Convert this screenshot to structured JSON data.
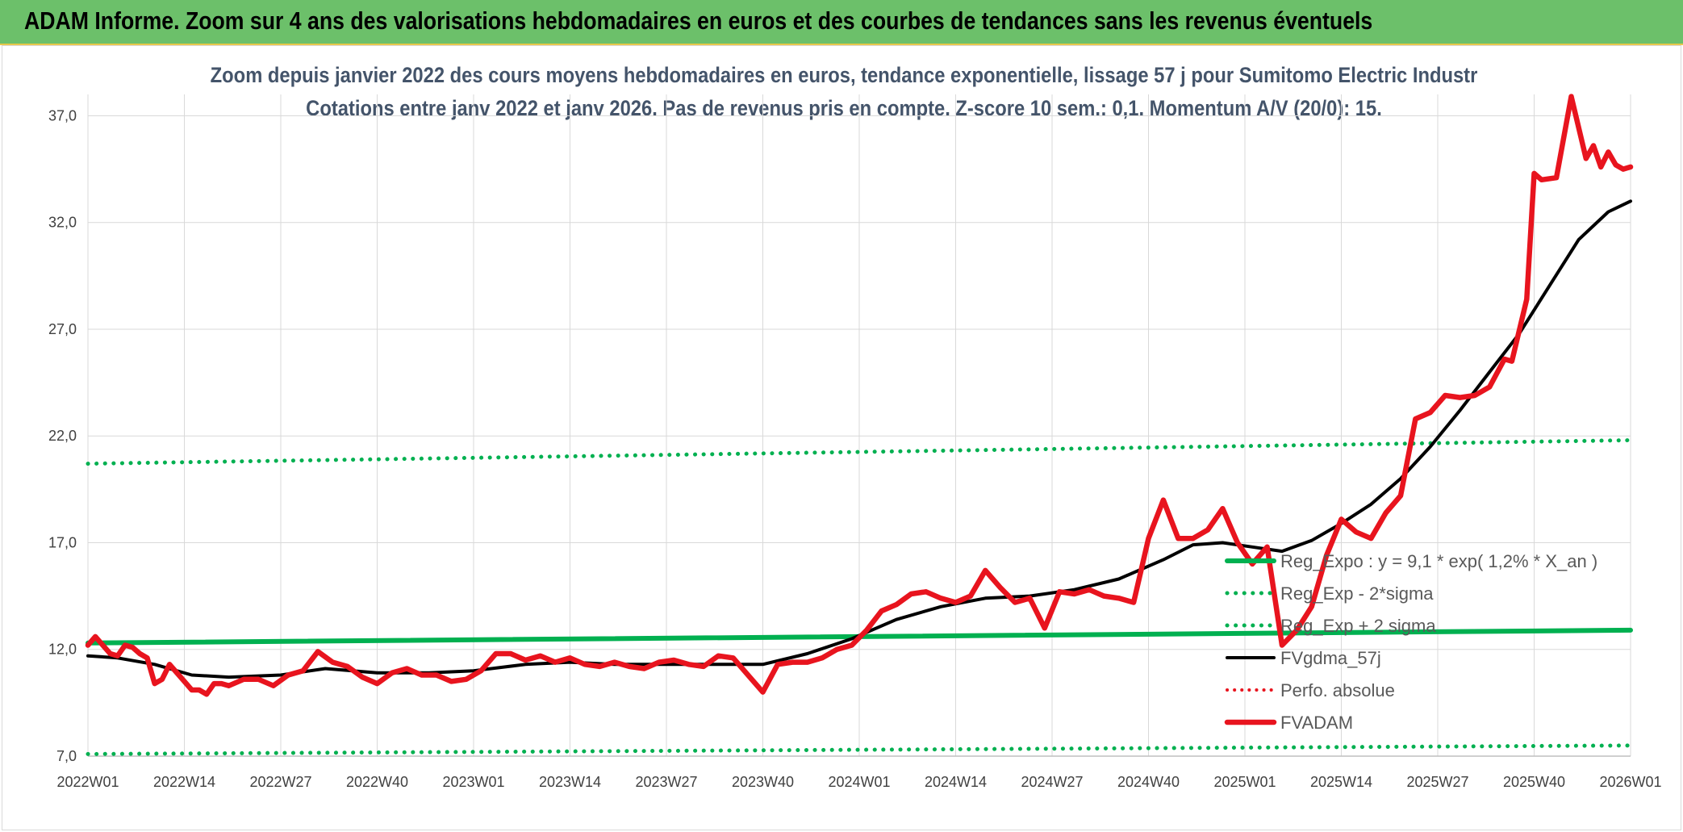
{
  "banner": {
    "title": "ADAM Informe. Zoom sur 4 ans des valorisations hebdomadaires en euros et des courbes de tendances sans les revenus éventuels"
  },
  "colors": {
    "banner_bg": "#6cc06a",
    "price": "#e8141e",
    "smooth": "#000000",
    "regression": "#00b050",
    "perfo": "#e8141e",
    "grid": "#d9d9d9"
  },
  "chart_data": {
    "type": "line",
    "title": "Zoom depuis janvier 2022 des cours moyens hebdomadaires en euros, tendance exponentielle, lissage 57 j pour Sumitomo Electric Industr",
    "subtitle": "Cotations entre janv 2022 et janv 2026. Pas de revenus pris en compte. Z-score 10 sem.: 0,1. Momentum A/V (20/0): 15.",
    "xlabel": "",
    "ylabel": "",
    "ylim": [
      7,
      38
    ],
    "yticks": [
      7,
      12,
      17,
      22,
      27,
      32,
      37
    ],
    "ytick_labels": [
      "7,0",
      "12,0",
      "17,0",
      "22,0",
      "27,0",
      "32,0",
      "37,0"
    ],
    "xrange": [
      1,
      209
    ],
    "xticks": [
      1,
      14,
      27,
      40,
      53,
      66,
      79,
      92,
      105,
      118,
      131,
      144,
      157,
      170,
      183,
      196,
      209
    ],
    "xtick_labels": [
      "2022W01",
      "2022W14",
      "2022W27",
      "2022W40",
      "2023W01",
      "2023W14",
      "2023W27",
      "2023W40",
      "2024W01",
      "2024W14",
      "2024W27",
      "2024W40",
      "2025W01",
      "2025W14",
      "2025W27",
      "2025W40",
      "2026W01"
    ],
    "grid": true,
    "legend_position": "center-right",
    "series": [
      {
        "name": "Reg_Expo : y = 9,1 * exp( 1,2% *  X_an )",
        "style": "solid-green",
        "x": [
          1,
          209
        ],
        "values": [
          12.3,
          12.9
        ]
      },
      {
        "name": "Reg_Exp - 2*sigma",
        "style": "dotted-green",
        "x": [
          1,
          209
        ],
        "values": [
          7.1,
          7.5
        ]
      },
      {
        "name": "Reg_Exp + 2 sigma",
        "style": "dotted-green",
        "x": [
          1,
          209
        ],
        "values": [
          20.7,
          21.8
        ]
      },
      {
        "name": "FVgdma_57j",
        "style": "solid-black",
        "x": [
          1,
          5,
          10,
          15,
          20,
          27,
          33,
          40,
          47,
          53,
          60,
          66,
          72,
          79,
          85,
          92,
          98,
          104,
          110,
          116,
          122,
          128,
          134,
          140,
          146,
          150,
          154,
          158,
          162,
          166,
          170,
          174,
          178,
          182,
          186,
          190,
          194,
          198,
          202,
          206,
          209
        ],
        "values": [
          11.7,
          11.6,
          11.3,
          10.8,
          10.7,
          10.8,
          11.1,
          10.9,
          10.9,
          11.0,
          11.3,
          11.4,
          11.3,
          11.3,
          11.3,
          11.3,
          11.8,
          12.5,
          13.4,
          14.0,
          14.4,
          14.5,
          14.8,
          15.3,
          16.2,
          16.9,
          17.0,
          16.8,
          16.6,
          17.1,
          17.9,
          18.8,
          20.0,
          21.5,
          23.2,
          25.0,
          26.8,
          29.0,
          31.2,
          32.5,
          33.0
        ]
      },
      {
        "name": "Perfo. absolue",
        "style": "dotted-red",
        "x": [],
        "values": []
      },
      {
        "name": "FVADAM",
        "style": "solid-red",
        "x": [
          1,
          2,
          3,
          4,
          5,
          6,
          7,
          8,
          9,
          10,
          11,
          12,
          13,
          14,
          15,
          16,
          17,
          18,
          19,
          20,
          22,
          24,
          26,
          28,
          30,
          32,
          34,
          36,
          38,
          40,
          42,
          44,
          46,
          48,
          50,
          52,
          54,
          56,
          58,
          60,
          62,
          64,
          66,
          68,
          70,
          72,
          74,
          76,
          78,
          80,
          82,
          84,
          86,
          88,
          90,
          92,
          94,
          96,
          98,
          100,
          102,
          104,
          106,
          108,
          110,
          112,
          114,
          116,
          118,
          120,
          122,
          124,
          126,
          128,
          130,
          132,
          134,
          136,
          138,
          140,
          142,
          144,
          146,
          148,
          150,
          152,
          154,
          156,
          158,
          160,
          162,
          164,
          166,
          168,
          170,
          172,
          174,
          176,
          178,
          180,
          182,
          184,
          186,
          188,
          190,
          192,
          193,
          195,
          196,
          197,
          199,
          201,
          203,
          204,
          205,
          206,
          207,
          208,
          209
        ],
        "values": [
          12.2,
          12.6,
          12.2,
          11.8,
          11.7,
          12.2,
          12.1,
          11.8,
          11.6,
          10.4,
          10.6,
          11.3,
          10.9,
          10.5,
          10.1,
          10.1,
          9.9,
          10.4,
          10.4,
          10.3,
          10.6,
          10.6,
          10.3,
          10.8,
          11.0,
          11.9,
          11.4,
          11.2,
          10.7,
          10.4,
          10.9,
          11.1,
          10.8,
          10.8,
          10.5,
          10.6,
          11.0,
          11.8,
          11.8,
          11.5,
          11.7,
          11.4,
          11.6,
          11.3,
          11.2,
          11.4,
          11.2,
          11.1,
          11.4,
          11.5,
          11.3,
          11.2,
          11.7,
          11.6,
          10.8,
          10.0,
          11.3,
          11.4,
          11.4,
          11.6,
          12.0,
          12.2,
          12.9,
          13.8,
          14.1,
          14.6,
          14.7,
          14.4,
          14.2,
          14.5,
          15.7,
          14.9,
          14.2,
          14.4,
          13.0,
          14.7,
          14.6,
          14.8,
          14.5,
          14.4,
          14.2,
          17.2,
          19.0,
          17.2,
          17.2,
          17.6,
          18.6,
          17.0,
          16.0,
          16.8,
          12.2,
          12.9,
          14.0,
          16.4,
          18.1,
          17.5,
          17.2,
          18.4,
          19.2,
          22.8,
          23.1,
          23.9,
          23.8,
          23.9,
          24.3,
          25.6,
          25.5,
          28.4,
          34.3,
          34.0,
          34.1,
          37.9,
          35.0,
          35.6,
          34.6,
          35.3,
          34.7,
          34.5,
          34.6
        ]
      }
    ]
  }
}
